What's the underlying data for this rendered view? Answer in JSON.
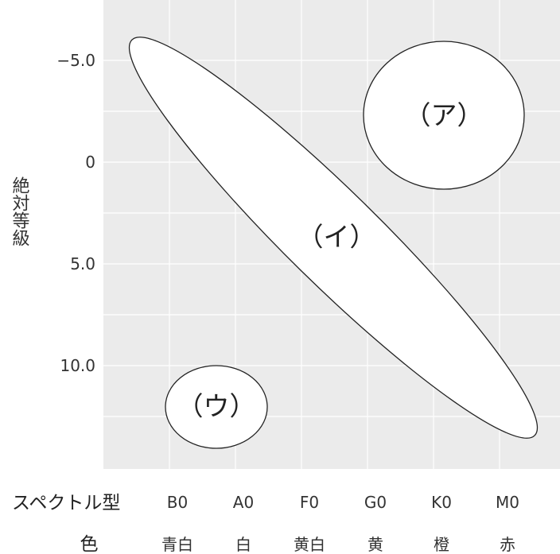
{
  "diagram": {
    "y_axis": {
      "label": "絶対等級",
      "ticks": [
        "−5.0",
        "0",
        "5.0",
        "10.0"
      ]
    },
    "regions": [
      {
        "label": "（ア）"
      },
      {
        "label": "（イ）"
      },
      {
        "label": "（ウ）"
      }
    ],
    "rows": [
      {
        "header": "スペクトル型",
        "values": [
          "B0",
          "A0",
          "F0",
          "G0",
          "K0",
          "M0"
        ]
      },
      {
        "header": "色",
        "values": [
          "青白",
          "白",
          "黄白",
          "黄",
          "橙",
          "赤"
        ]
      }
    ],
    "colors": {
      "panel": "#ebebeb",
      "gridline": "#ffffff",
      "region_fill": "#ffffff",
      "region_stroke": "#222222"
    }
  }
}
